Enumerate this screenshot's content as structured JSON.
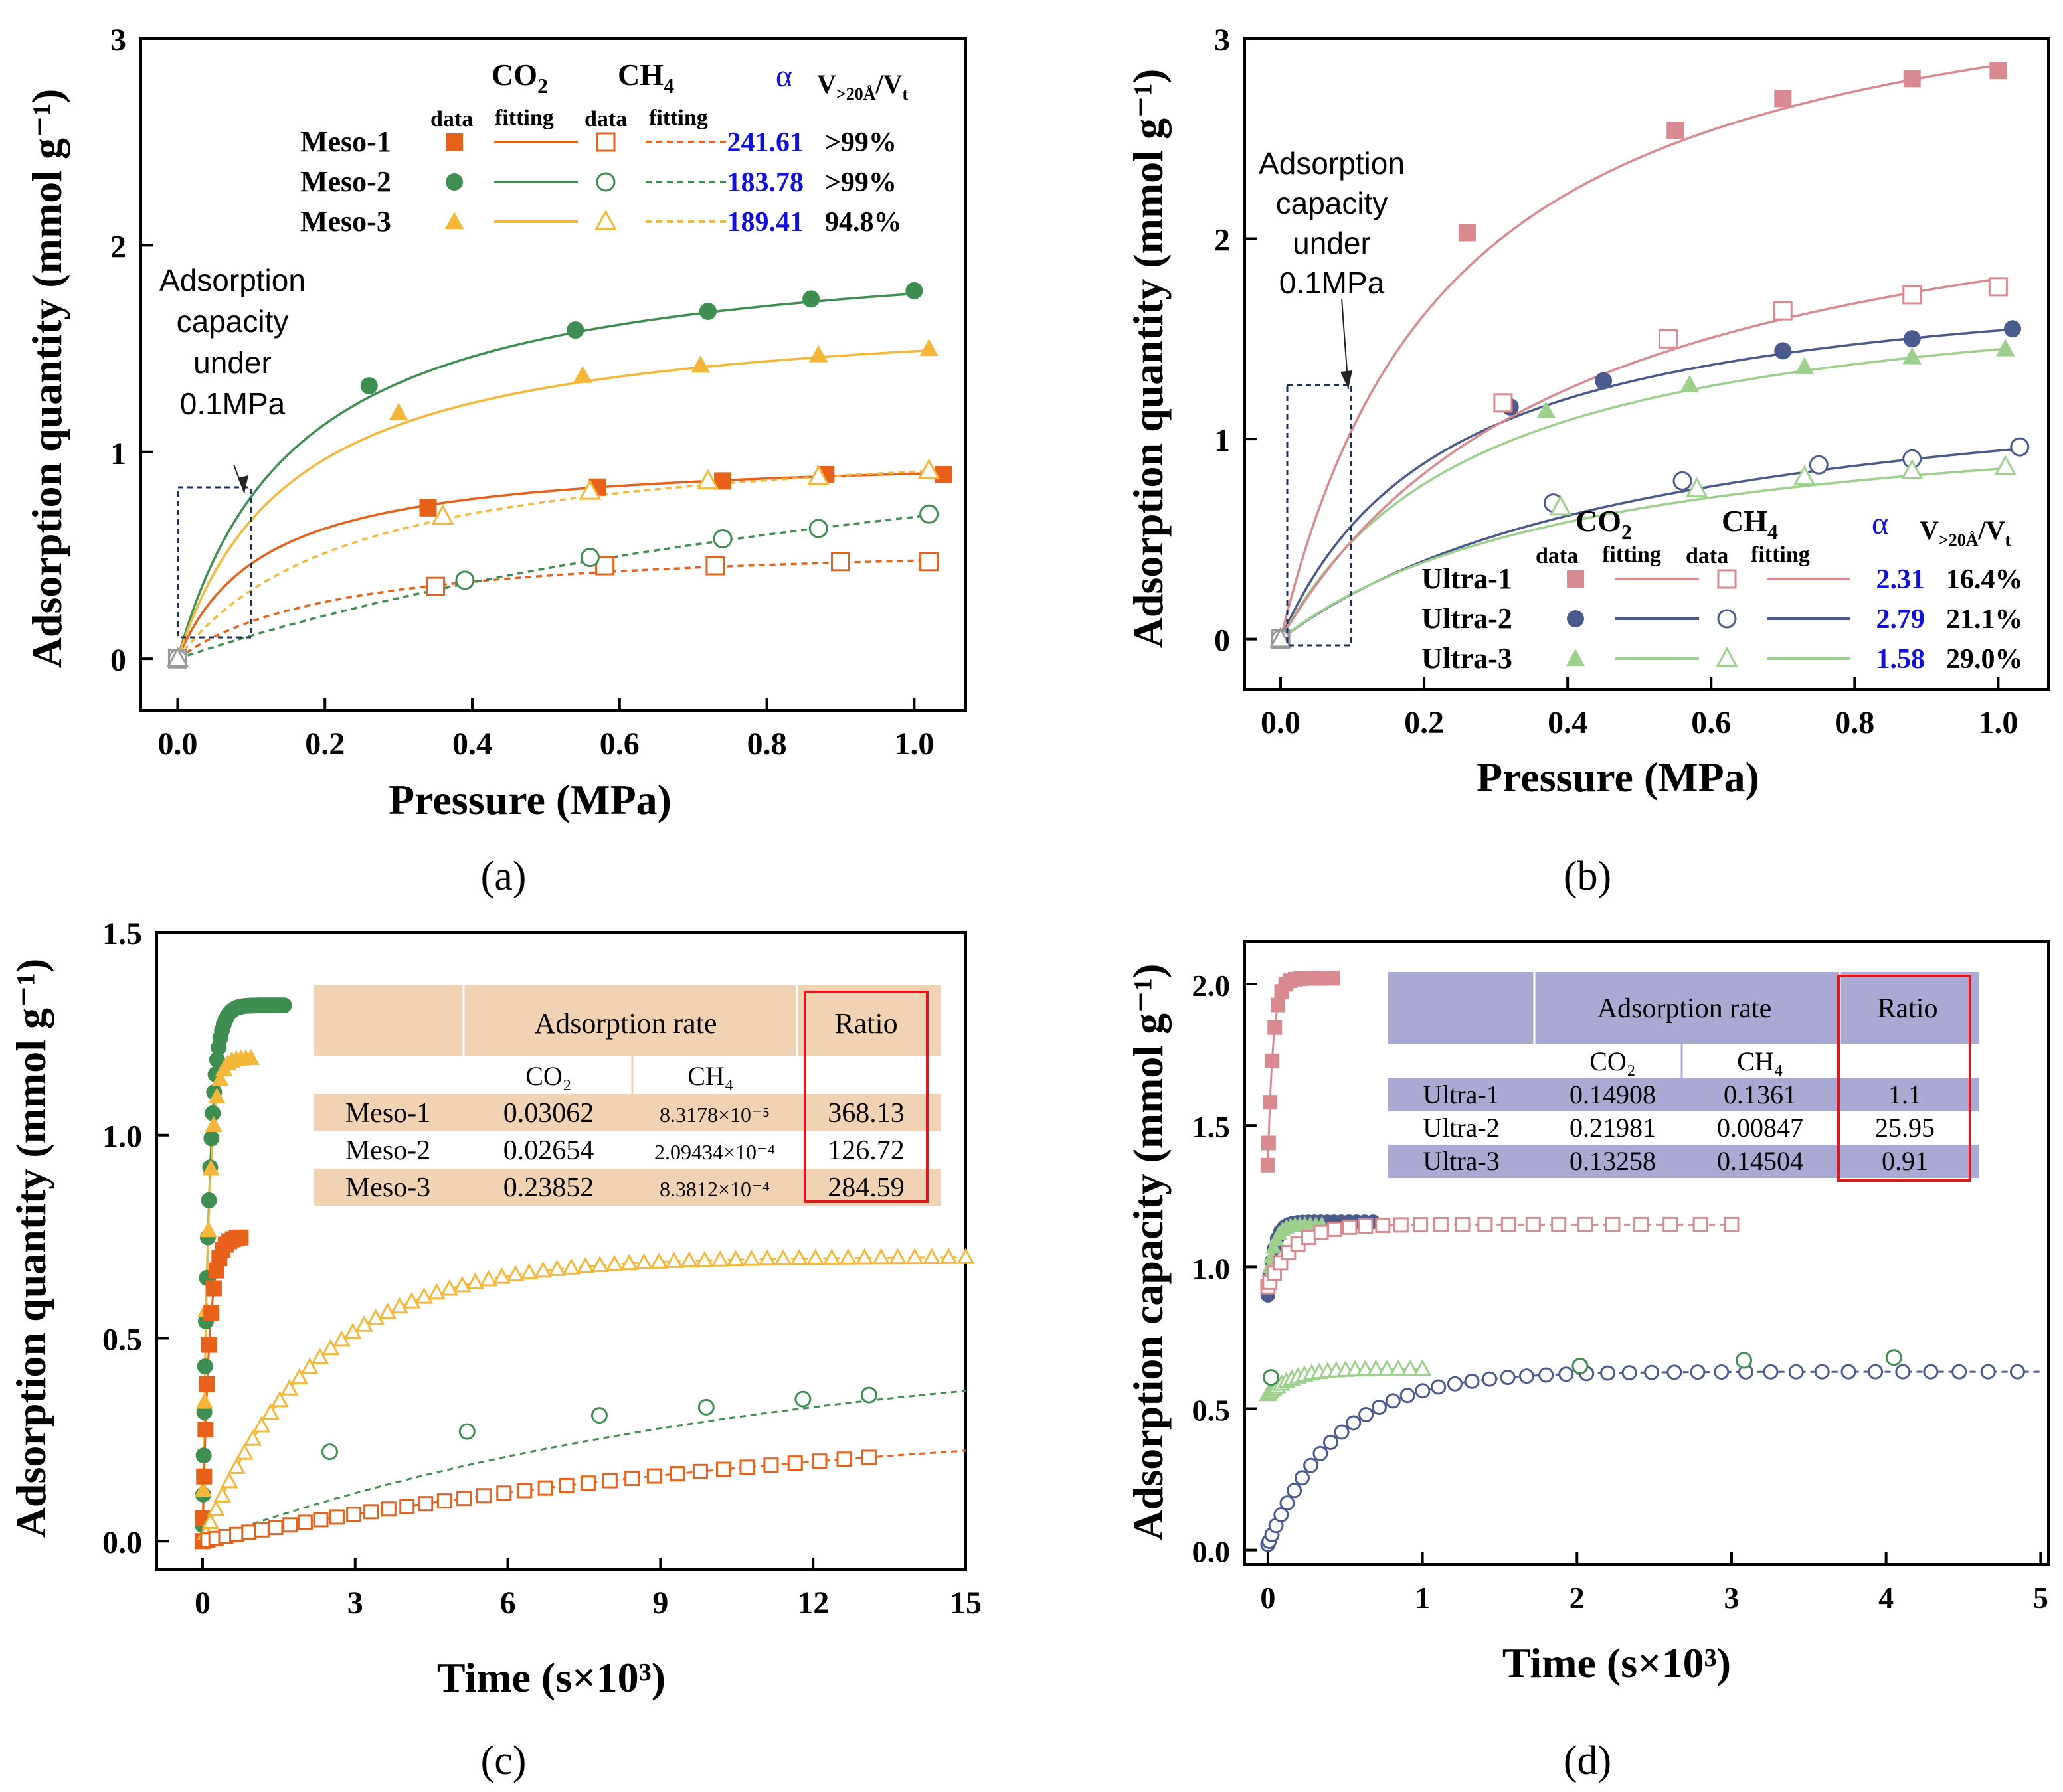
{
  "panels": {
    "a": {
      "label": "(a)"
    },
    "b": {
      "label": "(b)"
    },
    "c": {
      "label": "(c)"
    },
    "d": {
      "label": "(d)"
    }
  },
  "colors": {
    "meso1": "#E8611A",
    "meso2": "#3E8E52",
    "meso3": "#F4B73A",
    "ultra1": "#D98A90",
    "ultra2": "#4B5A8C",
    "ultra3": "#9DD08C",
    "alpha": "#1010D8",
    "table_a": "#F1D2B3",
    "table_b": "#A9A9D4",
    "ratio_box": "#E0161B"
  },
  "chart_data": [
    {
      "id": "a",
      "type": "scatter",
      "title": "",
      "xlabel": "Pressure (MPa)",
      "ylabel": "Adsorption quantity (mmol g⁻¹)",
      "xlim": [
        -0.05,
        1.07
      ],
      "ylim": [
        -0.25,
        3.0
      ],
      "xticks": [
        "0.0",
        "0.2",
        "0.4",
        "0.6",
        "0.8",
        "1.0"
      ],
      "yticks": [
        "0",
        "1",
        "2",
        "3"
      ],
      "annotation": [
        "Adsorption",
        "capacity",
        "under",
        "0.1MPa"
      ],
      "legend": {
        "gas_co2": "CO",
        "gas_ch4": "CH",
        "sub_co2": "2",
        "sub_ch4": "4",
        "col_data": "data",
        "col_fitting": "fitting",
        "alpha_header": "α",
        "v_header": "V",
        "v_header_sub": ">20Å",
        "v_header_tail": "/V",
        "v_header_tail_sub": "t",
        "rows": [
          {
            "name": "Meso-1",
            "alpha": "241.61",
            "v": ">99%"
          },
          {
            "name": "Meso-2",
            "alpha": "183.78",
            "v": ">99%"
          },
          {
            "name": "Meso-3",
            "alpha": "189.41",
            "v": "94.8%"
          }
        ]
      },
      "series": [
        {
          "name": "Meso-1 CO2",
          "marker": "square",
          "filled": true,
          "x": [
            0,
            0.34,
            0.57,
            0.74,
            0.88,
            1.04
          ],
          "y": [
            0,
            0.73,
            0.83,
            0.86,
            0.89,
            0.89
          ],
          "fit_qmax": 1.0,
          "fit_b": 8.5,
          "dashed": false
        },
        {
          "name": "Meso-2 CO2",
          "marker": "circle",
          "filled": true,
          "x": [
            0,
            0.26,
            0.54,
            0.72,
            0.86,
            1.0
          ],
          "y": [
            0,
            1.32,
            1.59,
            1.68,
            1.74,
            1.78
          ],
          "fit_qmax": 2.05,
          "fit_b": 6.2,
          "dashed": false
        },
        {
          "name": "Meso-3 CO2",
          "marker": "triangle",
          "filled": true,
          "x": [
            0,
            0.3,
            0.55,
            0.71,
            0.87,
            1.02
          ],
          "y": [
            0,
            1.19,
            1.37,
            1.42,
            1.47,
            1.5
          ],
          "fit_qmax": 1.72,
          "fit_b": 6.4,
          "dashed": false
        },
        {
          "name": "Meso-1 CH4",
          "marker": "square",
          "filled": false,
          "x": [
            0,
            0.35,
            0.58,
            0.73,
            0.9,
            1.02
          ],
          "y": [
            0,
            0.35,
            0.45,
            0.45,
            0.47,
            0.47
          ],
          "fit_qmax": 0.58,
          "fit_b": 4.5,
          "dashed": true
        },
        {
          "name": "Meso-2 CH4",
          "marker": "circle",
          "filled": false,
          "x": [
            0,
            0.39,
            0.56,
            0.74,
            0.87,
            1.02
          ],
          "y": [
            0,
            0.38,
            0.49,
            0.58,
            0.63,
            0.7
          ],
          "fit_qmax": 1.6,
          "fit_b": 0.75,
          "dashed": true
        },
        {
          "name": "Meso-3 CH4",
          "marker": "triangle",
          "filled": false,
          "x": [
            0,
            0.36,
            0.56,
            0.72,
            0.87,
            1.02
          ],
          "y": [
            0,
            0.69,
            0.81,
            0.86,
            0.88,
            0.91
          ],
          "fit_qmax": 1.12,
          "fit_b": 4.2,
          "dashed": true
        }
      ]
    },
    {
      "id": "b",
      "type": "scatter",
      "title": "",
      "xlabel": "Pressure (MPa)",
      "ylabel": "Adsorption quantity (mmol g⁻¹)",
      "xlim": [
        -0.05,
        1.07
      ],
      "ylim": [
        -0.25,
        3.0
      ],
      "xticks": [
        "0.0",
        "0.2",
        "0.4",
        "0.6",
        "0.8",
        "1.0"
      ],
      "yticks": [
        "0",
        "1",
        "2",
        "3"
      ],
      "annotation": [
        "Adsorption",
        "capacity",
        "under",
        "0.1MPa"
      ],
      "legend": {
        "gas_co2": "CO",
        "gas_ch4": "CH",
        "sub_co2": "2",
        "sub_ch4": "4",
        "col_data": "data",
        "col_fitting": "fitting",
        "alpha_header": "α",
        "v_header": "V",
        "v_header_sub": ">20Å",
        "v_header_tail": "/V",
        "v_header_tail_sub": "t",
        "rows": [
          {
            "name": "Ultra-1",
            "alpha": "2.31",
            "v": "16.4%"
          },
          {
            "name": "Ultra-2",
            "alpha": "2.79",
            "v": "21.1%"
          },
          {
            "name": "Ultra-3",
            "alpha": "1.58",
            "v": "29.0%"
          }
        ]
      },
      "series": [
        {
          "name": "Ultra-1 CO2",
          "marker": "square",
          "filled": true,
          "x": [
            0,
            0.26,
            0.55,
            0.7,
            0.88,
            1.0
          ],
          "y": [
            0,
            2.03,
            2.54,
            2.7,
            2.8,
            2.84
          ],
          "fit_qmax": 3.55,
          "fit_b": 4.2,
          "dashed": false
        },
        {
          "name": "Ultra-2 CO2",
          "marker": "circle",
          "filled": true,
          "x": [
            0,
            0.32,
            0.45,
            0.7,
            0.88,
            1.02
          ],
          "y": [
            0,
            1.16,
            1.29,
            1.44,
            1.5,
            1.55
          ],
          "fit_qmax": 1.9,
          "fit_b": 4.3,
          "dashed": false
        },
        {
          "name": "Ultra-3 CO2",
          "marker": "triangle",
          "filled": true,
          "x": [
            0,
            0.37,
            0.57,
            0.73,
            0.88,
            1.01
          ],
          "y": [
            0,
            1.14,
            1.27,
            1.36,
            1.41,
            1.45
          ],
          "fit_qmax": 1.85,
          "fit_b": 3.6,
          "dashed": false
        },
        {
          "name": "Ultra-1 CH4",
          "marker": "square",
          "filled": false,
          "x": [
            0,
            0.31,
            0.54,
            0.7,
            0.88,
            1.0
          ],
          "y": [
            0,
            1.18,
            1.5,
            1.64,
            1.72,
            1.76
          ],
          "fit_qmax": 2.55,
          "fit_b": 2.4,
          "dashed": false
        },
        {
          "name": "Ultra-2 CH4",
          "marker": "circle",
          "filled": false,
          "x": [
            0,
            0.38,
            0.56,
            0.75,
            0.88,
            1.03
          ],
          "y": [
            0,
            0.68,
            0.79,
            0.87,
            0.9,
            0.96
          ],
          "fit_qmax": 1.45,
          "fit_b": 1.85,
          "dashed": false
        },
        {
          "name": "Ultra-3 CH4",
          "marker": "triangle",
          "filled": false,
          "x": [
            0,
            0.39,
            0.58,
            0.73,
            0.88,
            1.01
          ],
          "y": [
            0,
            0.66,
            0.75,
            0.81,
            0.84,
            0.86
          ],
          "fit_qmax": 1.22,
          "fit_b": 2.3,
          "dashed": false
        }
      ]
    },
    {
      "id": "c",
      "type": "scatter",
      "title": "",
      "xlabel": "Time (s×10³)",
      "ylabel": "Adsorption quantity (mmol g⁻¹)",
      "xlim": [
        -0.9,
        15.0
      ],
      "ylim": [
        -0.07,
        1.5
      ],
      "xticks": [
        "0",
        "3",
        "6",
        "9",
        "12",
        "15"
      ],
      "yticks": [
        "0.0",
        "0.5",
        "1.0",
        "1.5"
      ],
      "table": {
        "header_rate": "Adsorption rate",
        "header_ratio": "Ratio",
        "sub_co2": "CO₂",
        "sub_ch4": "CH₄",
        "rows": [
          {
            "name": "Meso-1",
            "co2": "0.03062",
            "ch4": "8.3178×10⁻⁵",
            "ratio": "368.13"
          },
          {
            "name": "Meso-2",
            "co2": "0.02654",
            "ch4": "2.09434×10⁻⁴",
            "ratio": "126.72"
          },
          {
            "name": "Meso-3",
            "co2": "0.23852",
            "ch4": "8.3812×10⁻⁴",
            "ratio": "284.59"
          }
        ]
      },
      "series": [
        {
          "name": "Meso-2 CO2",
          "marker": "circle",
          "filled": true,
          "plateau": 1.32,
          "k": 8.0,
          "tmax": 1.6,
          "n": 45
        },
        {
          "name": "Meso-3 CO2",
          "marker": "triangle",
          "filled": true,
          "plateau": 1.19,
          "k": 9.0,
          "tmax": 0.95,
          "n": 16
        },
        {
          "name": "Meso-1 CO2",
          "marker": "square",
          "filled": true,
          "plateau": 0.75,
          "k": 8.0,
          "tmax": 0.75,
          "n": 16
        },
        {
          "name": "Meso-3 CH4",
          "marker": "triangle",
          "filled": false,
          "plateau": 0.7,
          "k": 0.45,
          "tmax": 15.0,
          "n": 60
        },
        {
          "name": "Meso-2 CH4",
          "marker": "circle",
          "filled": false,
          "x": [
            2.5,
            5.2,
            7.8,
            9.9,
            11.8,
            13.1
          ],
          "y": [
            0.22,
            0.27,
            0.31,
            0.33,
            0.35,
            0.36
          ],
          "fit_plateau": 0.5,
          "fit_k": 0.09
        },
        {
          "name": "Meso-1 CH4",
          "marker": "square",
          "filled": false,
          "plateau": 0.33,
          "k": 0.075,
          "tmax": 13.1,
          "n": 36
        }
      ]
    },
    {
      "id": "d",
      "type": "scatter",
      "title": "",
      "xlabel": "Time (s×10³)",
      "ylabel": "Adsorption capacity (mmol g⁻¹)",
      "xlim": [
        -0.15,
        5.05
      ],
      "ylim": [
        -0.05,
        2.15
      ],
      "xticks": [
        "0",
        "1",
        "2",
        "3",
        "4",
        "5"
      ],
      "yticks": [
        "0.0",
        "0.5",
        "1.0",
        "1.5",
        "2.0"
      ],
      "table": {
        "header_rate": "Adsorption rate",
        "header_ratio": "Ratio",
        "sub_co2": "CO₂",
        "sub_ch4": "CH₄",
        "rows": [
          {
            "name": "Ultra-1",
            "co2": "0.14908",
            "ch4": "0.1361",
            "ratio": "1.1"
          },
          {
            "name": "Ultra-2",
            "co2": "0.21981",
            "ch4": "0.00847",
            "ratio": "25.95"
          },
          {
            "name": "Ultra-3",
            "co2": "0.13258",
            "ch4": "0.14504",
            "ratio": "0.91"
          }
        ]
      },
      "series": [
        {
          "name": "Ultra-1 CO2",
          "marker": "square",
          "filled": true,
          "plateau": 2.02,
          "start": 1.36,
          "k": 30.0,
          "tmax": 0.42,
          "n": 16
        },
        {
          "name": "Ultra-2 CO2",
          "marker": "circle",
          "filled": true,
          "plateau": 1.16,
          "start": 0.9,
          "k": 25.0,
          "tmax": 0.68,
          "n": 22
        },
        {
          "name": "Ultra-3 CO2",
          "marker": "triangle",
          "filled": true,
          "plateau": 1.15,
          "start": 0.95,
          "k": 25.0,
          "tmax": 0.35,
          "n": 16
        },
        {
          "name": "Ultra-1 CH4",
          "marker": "square",
          "filled": false,
          "plateau": 1.15,
          "start": 0.93,
          "k": 6.0,
          "tmax": 3.0,
          "n": 26
        },
        {
          "name": "Ultra-3 CH4",
          "marker": "triangle",
          "filled": false,
          "plateau": 0.64,
          "start": 0.55,
          "k": 6.0,
          "tmax": 1.0,
          "n": 22
        },
        {
          "name": "Ultra-2 CH4",
          "marker": "circle",
          "filled": false,
          "plateau": 0.63,
          "start": 0.02,
          "k": 2.2,
          "tmax": 4.85,
          "n": 44
        },
        {
          "name": "Ultra-3 CH4 outliers",
          "marker": "circle-green",
          "filled": false,
          "x": [
            0.02,
            2.02,
            3.08,
            4.05
          ],
          "y": [
            0.61,
            0.65,
            0.67,
            0.68
          ]
        }
      ]
    }
  ]
}
